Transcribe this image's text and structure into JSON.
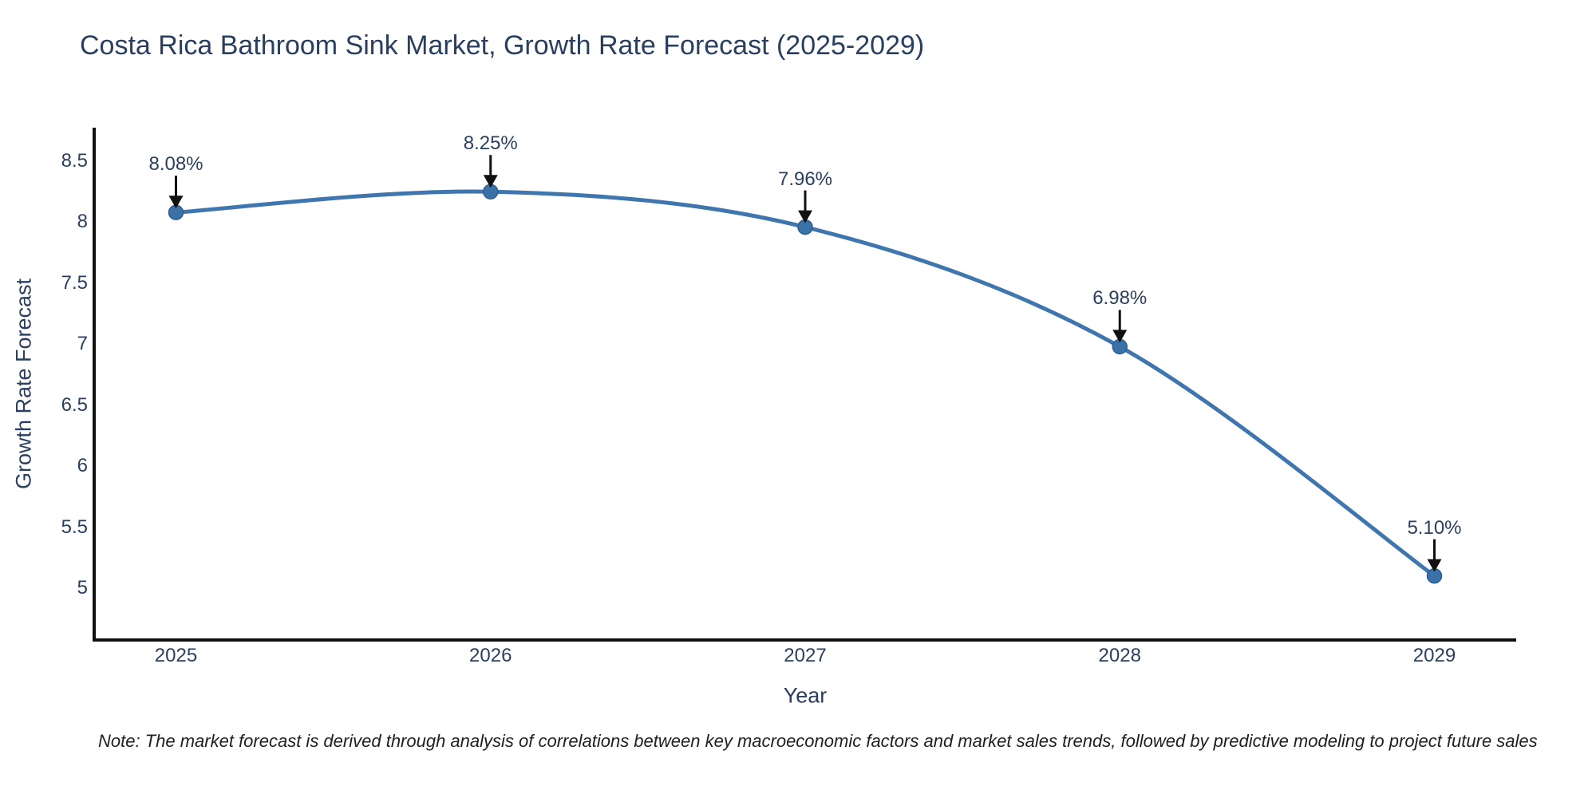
{
  "title": "Costa Rica Bathroom Sink Market, Growth Rate Forecast (2025-2029)",
  "note": "Note: The market forecast is derived through analysis of correlations between key macroeconomic factors and market sales trends, followed by predictive modeling to project future sales",
  "chart_data": {
    "type": "line",
    "line_shape": "spline",
    "title": "Costa Rica Bathroom Sink Market, Growth Rate Forecast (2025-2029)",
    "xlabel": "Year",
    "ylabel": "Growth Rate Forecast",
    "x": [
      2025,
      2026,
      2027,
      2028,
      2029
    ],
    "series": [
      {
        "name": "Growth Rate Forecast",
        "values": [
          8.08,
          8.25,
          7.96,
          6.98,
          5.1
        ]
      }
    ],
    "point_labels": [
      "8.08%",
      "8.25%",
      "7.96%",
      "6.98%",
      "5.10%"
    ],
    "yticks": [
      5,
      5.5,
      6,
      6.5,
      7,
      7.5,
      8,
      8.5
    ],
    "xticks": [
      "2025",
      "2026",
      "2027",
      "2028",
      "2029"
    ],
    "ylim": [
      4.575,
      8.775
    ],
    "xlim": [
      2024.74,
      2029.26
    ],
    "grid": false,
    "legend": false,
    "colors": {
      "line": "#3f76ad",
      "marker": "#3a72a8",
      "marker_edge": "#2d5e91",
      "arrow": "#111111",
      "axis": "#111111",
      "text": "#2a3f5f"
    }
  }
}
